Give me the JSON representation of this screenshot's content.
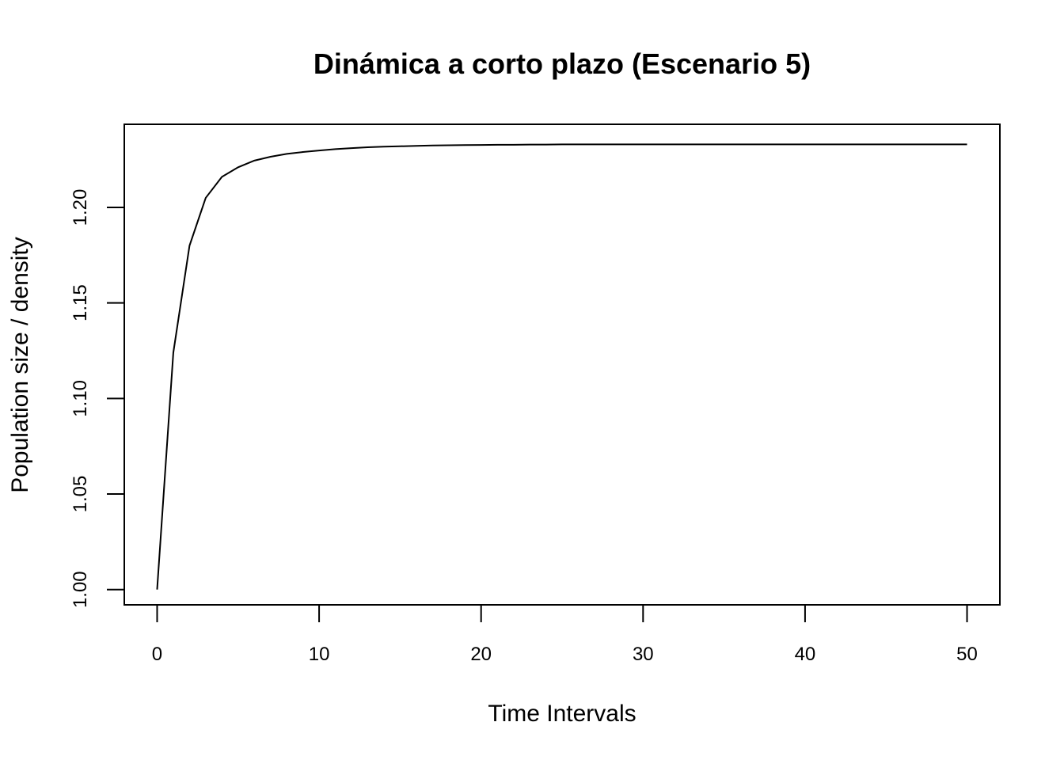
{
  "chart_data": {
    "type": "line",
    "title": "Dinámica a corto plazo (Escenario 5)",
    "xlabel": "Time Intervals",
    "ylabel": "Population size / density",
    "xlim": [
      0,
      50
    ],
    "ylim": [
      0.992,
      1.2435
    ],
    "x_ticks": [
      "0",
      "10",
      "20",
      "30",
      "40",
      "50"
    ],
    "y_ticks": [
      "1.00",
      "1.05",
      "1.10",
      "1.15",
      "1.20"
    ],
    "grid": false,
    "legend": "none",
    "series": [
      {
        "x": [
          0,
          1,
          2,
          3,
          4,
          5,
          6,
          7,
          8,
          9,
          10,
          11,
          12,
          13,
          14,
          15,
          16,
          17,
          18,
          19,
          20,
          21,
          22,
          23,
          24,
          25,
          26,
          27,
          28,
          29,
          30,
          31,
          32,
          33,
          34,
          35,
          36,
          37,
          38,
          39,
          40,
          41,
          42,
          43,
          44,
          45,
          46,
          47,
          48,
          49,
          50
        ],
        "values": [
          1.0,
          1.124,
          1.18,
          1.205,
          1.216,
          1.221,
          1.2245,
          1.2265,
          1.228,
          1.229,
          1.2298,
          1.2305,
          1.231,
          1.2315,
          1.2318,
          1.232,
          1.2322,
          1.2324,
          1.2325,
          1.2326,
          1.2327,
          1.2328,
          1.2328,
          1.2329,
          1.2329,
          1.233,
          1.233,
          1.233,
          1.233,
          1.233,
          1.233,
          1.233,
          1.233,
          1.233,
          1.233,
          1.233,
          1.233,
          1.233,
          1.233,
          1.233,
          1.233,
          1.233,
          1.233,
          1.233,
          1.233,
          1.233,
          1.233,
          1.233,
          1.233,
          1.233,
          1.233
        ]
      }
    ]
  }
}
